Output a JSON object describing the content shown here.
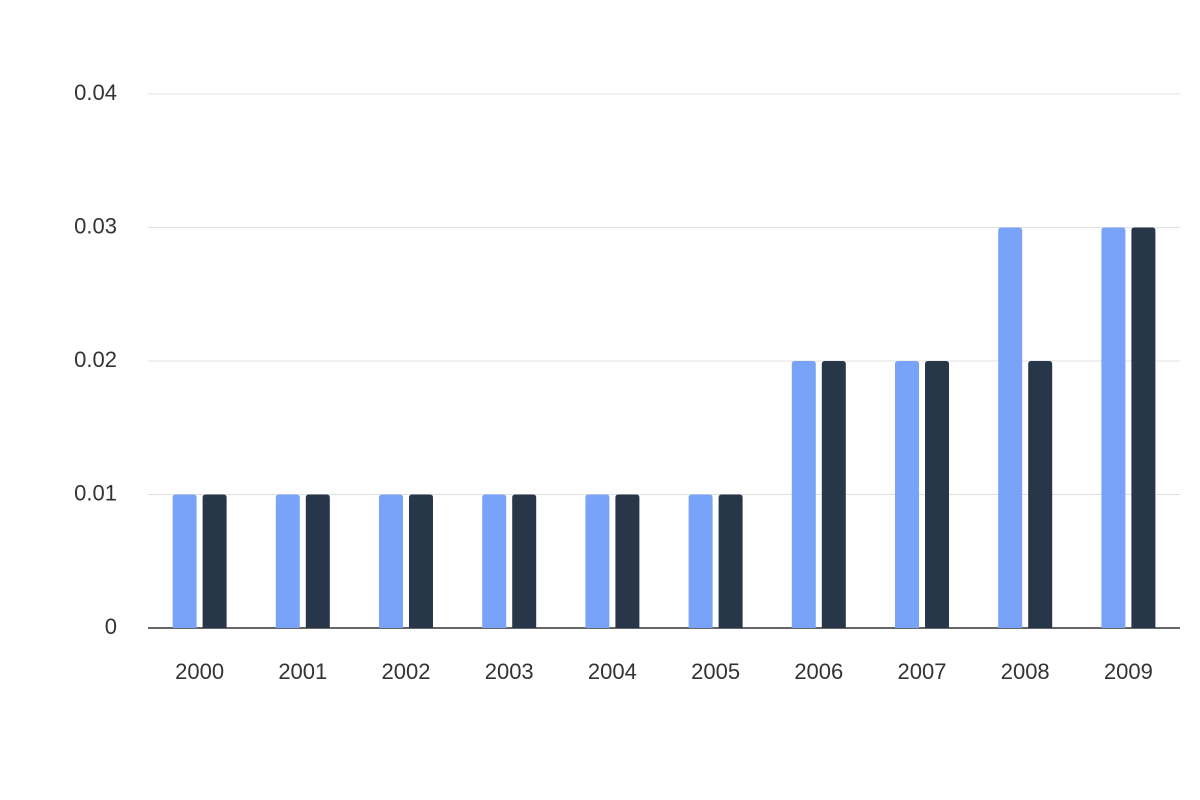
{
  "chart_data": {
    "type": "bar",
    "categories": [
      "2000",
      "2001",
      "2002",
      "2003",
      "2004",
      "2005",
      "2006",
      "2007",
      "2008",
      "2009"
    ],
    "series": [
      {
        "color": "#79a3f9",
        "values": [
          0.01,
          0.01,
          0.01,
          0.01,
          0.01,
          0.01,
          0.02,
          0.02,
          0.03,
          0.03
        ]
      },
      {
        "color": "#273649",
        "values": [
          0.01,
          0.01,
          0.01,
          0.01,
          0.01,
          0.01,
          0.02,
          0.02,
          0.02,
          0.03
        ]
      }
    ],
    "ylim": [
      0,
      0.04
    ],
    "yticks": [
      0,
      0.01,
      0.02,
      0.03,
      0.04
    ],
    "grid": true
  }
}
